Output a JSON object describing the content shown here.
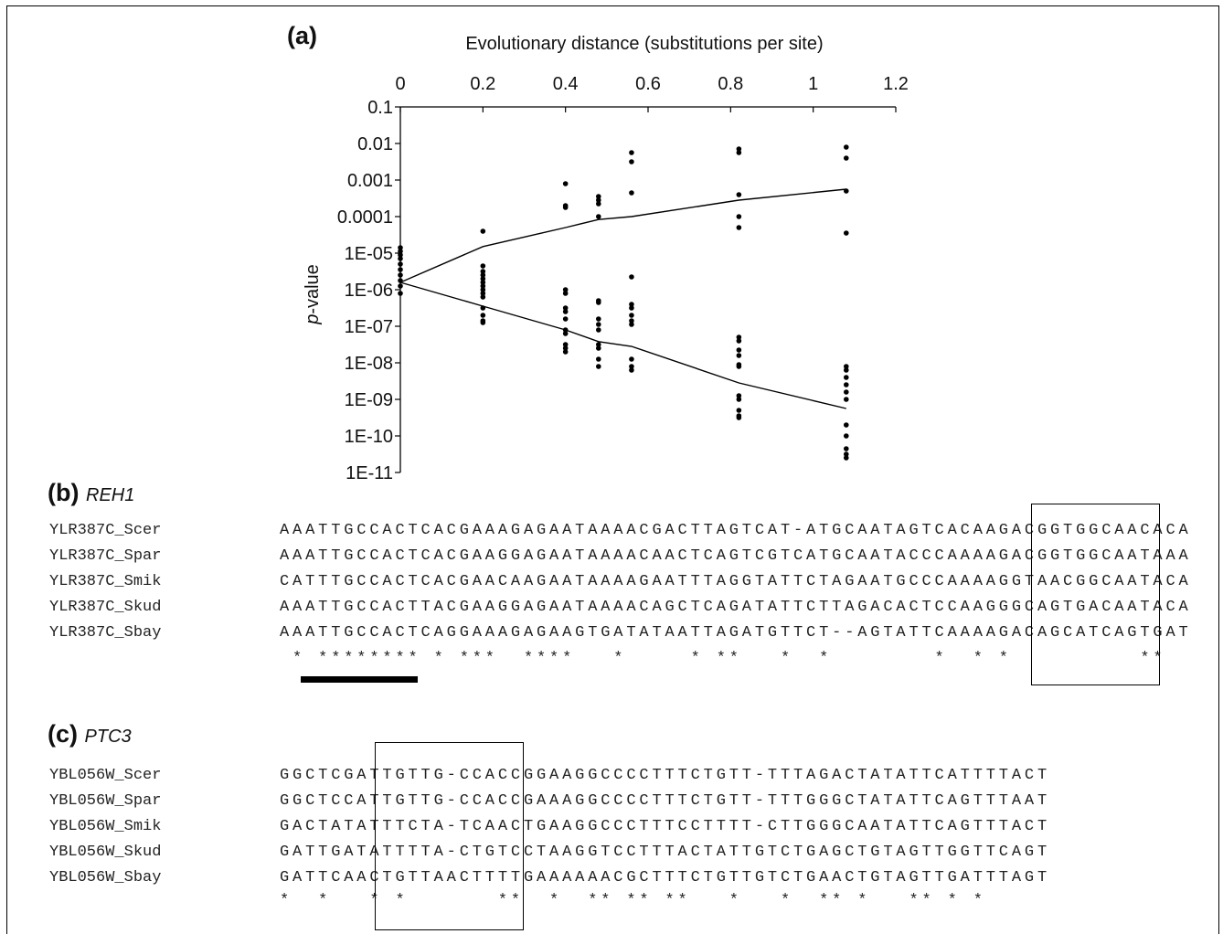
{
  "panel_a": {
    "label": "(a)",
    "chart_data": {
      "type": "scatter",
      "xlabel": "Evolutionary distance (substitutions per site)",
      "ylabel_italic": "p",
      "ylabel_rest": "-value",
      "x_ticks": [
        "0",
        "0.2",
        "0.4",
        "0.6",
        "0.8",
        "1",
        "1.2"
      ],
      "x_tick_values": [
        0,
        0.2,
        0.4,
        0.6,
        0.8,
        1.0,
        1.2
      ],
      "y_ticks": [
        "0.1",
        "0.01",
        "0.001",
        "0.0001",
        "1E-05",
        "1E-06",
        "1E-07",
        "1E-08",
        "1E-09",
        "1E-10",
        "1E-11"
      ],
      "xlim": [
        0,
        1.2
      ],
      "ylim_log10": [
        -11,
        -1
      ],
      "y_scale": "log",
      "points": [
        [
          0,
          -4.85
        ],
        [
          0,
          -4.95
        ],
        [
          0,
          -5.05
        ],
        [
          0,
          -5.15
        ],
        [
          0,
          -5.3
        ],
        [
          0,
          -5.45
        ],
        [
          0,
          -5.6
        ],
        [
          0,
          -5.75
        ],
        [
          0,
          -5.9
        ],
        [
          0,
          -6.1
        ],
        [
          0.2,
          -4.4
        ],
        [
          0.2,
          -5.35
        ],
        [
          0.2,
          -5.5
        ],
        [
          0.2,
          -5.6
        ],
        [
          0.2,
          -5.7
        ],
        [
          0.2,
          -5.8
        ],
        [
          0.2,
          -5.9
        ],
        [
          0.2,
          -6.0
        ],
        [
          0.2,
          -6.1
        ],
        [
          0.2,
          -6.2
        ],
        [
          0.2,
          -6.5
        ],
        [
          0.2,
          -6.7
        ],
        [
          0.2,
          -6.85
        ],
        [
          0.2,
          -6.9
        ],
        [
          0.4,
          -3.1
        ],
        [
          0.4,
          -3.7
        ],
        [
          0.4,
          -3.75
        ],
        [
          0.4,
          -6.0
        ],
        [
          0.4,
          -6.1
        ],
        [
          0.4,
          -6.5
        ],
        [
          0.4,
          -6.6
        ],
        [
          0.4,
          -6.8
        ],
        [
          0.4,
          -7.1
        ],
        [
          0.4,
          -7.2
        ],
        [
          0.4,
          -7.5
        ],
        [
          0.4,
          -7.6
        ],
        [
          0.4,
          -7.7
        ],
        [
          0.48,
          -3.45
        ],
        [
          0.48,
          -3.55
        ],
        [
          0.48,
          -3.65
        ],
        [
          0.48,
          -4.0
        ],
        [
          0.48,
          -6.3
        ],
        [
          0.48,
          -6.35
        ],
        [
          0.48,
          -6.8
        ],
        [
          0.48,
          -6.95
        ],
        [
          0.48,
          -7.1
        ],
        [
          0.48,
          -7.5
        ],
        [
          0.48,
          -7.6
        ],
        [
          0.48,
          -7.9
        ],
        [
          0.48,
          -8.1
        ],
        [
          0.56,
          -2.25
        ],
        [
          0.56,
          -2.5
        ],
        [
          0.56,
          -3.35
        ],
        [
          0.56,
          -5.65
        ],
        [
          0.56,
          -6.4
        ],
        [
          0.56,
          -6.5
        ],
        [
          0.56,
          -6.7
        ],
        [
          0.56,
          -6.85
        ],
        [
          0.56,
          -6.95
        ],
        [
          0.56,
          -7.9
        ],
        [
          0.56,
          -8.1
        ],
        [
          0.56,
          -8.2
        ],
        [
          0.82,
          -2.15
        ],
        [
          0.82,
          -2.25
        ],
        [
          0.82,
          -3.4
        ],
        [
          0.82,
          -4.0
        ],
        [
          0.82,
          -4.3
        ],
        [
          0.82,
          -7.3
        ],
        [
          0.82,
          -7.4
        ],
        [
          0.82,
          -7.65
        ],
        [
          0.82,
          -7.8
        ],
        [
          0.82,
          -8.05
        ],
        [
          0.82,
          -8.1
        ],
        [
          0.82,
          -8.9
        ],
        [
          0.82,
          -9.0
        ],
        [
          0.82,
          -9.3
        ],
        [
          0.82,
          -9.45
        ],
        [
          0.82,
          -9.5
        ],
        [
          1.08,
          -2.1
        ],
        [
          1.08,
          -2.4
        ],
        [
          1.08,
          -3.3
        ],
        [
          1.08,
          -4.45
        ],
        [
          1.08,
          -8.1
        ],
        [
          1.08,
          -8.2
        ],
        [
          1.08,
          -8.4
        ],
        [
          1.08,
          -8.6
        ],
        [
          1.08,
          -8.8
        ],
        [
          1.08,
          -9.0
        ],
        [
          1.08,
          -9.7
        ],
        [
          1.08,
          -10.0
        ],
        [
          1.08,
          -10.35
        ],
        [
          1.08,
          -10.5
        ],
        [
          1.08,
          -10.6
        ]
      ],
      "upper_line": {
        "x": [
          0,
          0.2,
          0.4,
          0.48,
          0.56,
          0.82,
          1.08
        ],
        "y_log10": [
          -5.8,
          -4.82,
          -4.3,
          -4.08,
          -4.0,
          -3.55,
          -3.25
        ]
      },
      "lower_line": {
        "x": [
          0,
          0.2,
          0.4,
          0.48,
          0.56,
          0.82,
          1.08
        ],
        "y_log10": [
          -5.8,
          -6.45,
          -7.1,
          -7.42,
          -7.55,
          -8.55,
          -9.25
        ]
      }
    }
  },
  "panel_b": {
    "label": "(b)",
    "gene": "REH1",
    "rows": [
      {
        "name": "YLR387C_Scer",
        "seq": "AAATTGCCACTCACGAAAGAGAATAAAACGACTTAGTCAT-ATGCAATAGTCACAAGACGGTGGCAACACA"
      },
      {
        "name": "YLR387C_Spar",
        "seq": "AAATTGCCACTCACGAAGGAGAATAAAACAACTCAGTCGTCATGCAATACCCAAAAGACGGTGGCAATAAA"
      },
      {
        "name": "YLR387C_Smik",
        "seq": "CATTTGCCACTCACGAACAAGAATAAAAGAATTTAGGTATTCTAGAATGCCCAAAAGGTAACGGCAATACA"
      },
      {
        "name": "YLR387C_Skud",
        "seq": "AAATTGCCACTTACGAAGGAGAATAAAACAGCTCAGATATTCTTAGACACTCCAAGGGCAGTGACAATACA"
      },
      {
        "name": "YLR387C_Sbay",
        "seq": "AAATTGCCACTCAGGAAAGAGAAGTGATATAATTAGATGTTCT--AGTATTCAAAAGACAGCATCAGTGAT"
      }
    ],
    "conservation": " * ******** * ***  ****   *     * **   *  *        *  * *          **    "
  },
  "panel_c": {
    "label": "(c)",
    "gene": "PTC3",
    "rows": [
      {
        "name": "YBL056W_Scer",
        "seq": "GGCTCGATTGTTG-CCACCGGAAGGCCCCTTTCTGTT-TTTAGACTATATTCATTTTACT"
      },
      {
        "name": "YBL056W_Spar",
        "seq": "GGCTCCATTGTTG-CCACCGAAAGGCCCCTTTCTGTT-TTTGGGCTATATTCAGTTTAAT"
      },
      {
        "name": "YBL056W_Smik",
        "seq": "GACTATATTTCTA-TCAACTGAAGGCCCTTTCCTTTT-CTTGGGCAATATTCAGTTTACT"
      },
      {
        "name": "YBL056W_Skud",
        "seq": "GATTGATATTTTA-CTGTCCTAAGGTCCTTTACTATTGTCTGAGCTGTAGTTGGTTCAGT"
      },
      {
        "name": "YBL056W_Sbay",
        "seq": "GATTCAACTGTTAACTTTTGAAAAAACGCTTTCTGTTGTCTGAACTGTAGTTGATTTAGT"
      }
    ],
    "conservation": "*  *   * *       **  *  ** ** **   *   *  ** *   ** * *"
  }
}
